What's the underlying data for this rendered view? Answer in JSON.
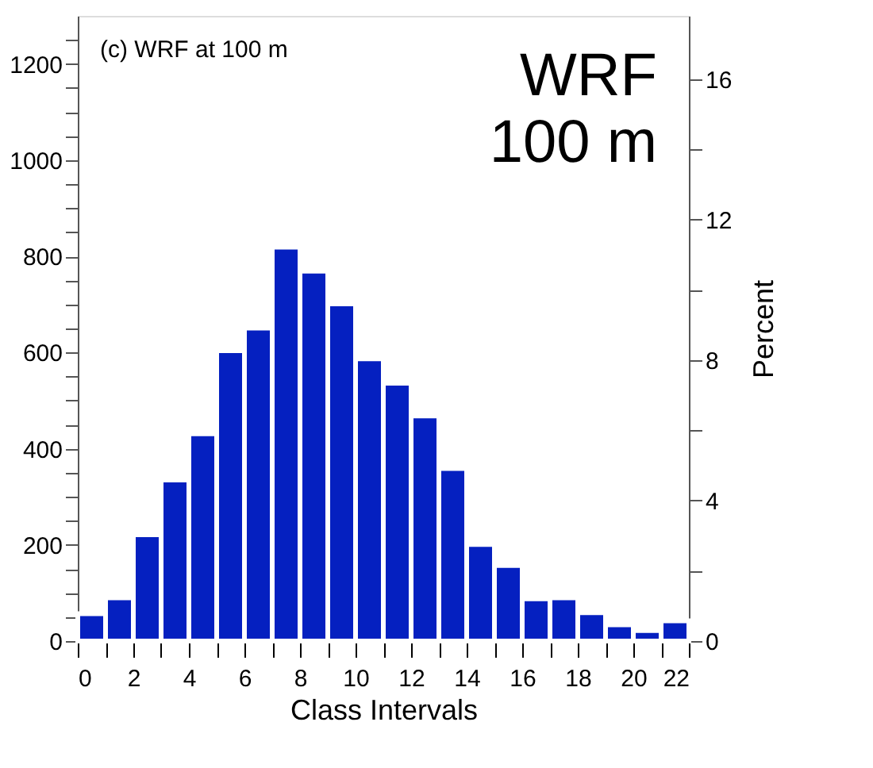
{
  "chart_data": {
    "type": "histogram",
    "xlabel": "Class Intervals",
    "y2label": "Percent",
    "bins": [
      0,
      1,
      2,
      3,
      4,
      5,
      6,
      7,
      8,
      9,
      10,
      11,
      12,
      13,
      14,
      15,
      16,
      17,
      18,
      19,
      20,
      21,
      22
    ],
    "values": [
      57,
      90,
      221,
      335,
      431,
      604,
      651,
      819,
      769,
      701,
      587,
      536,
      468,
      359,
      201,
      157,
      88,
      90,
      59,
      34,
      22,
      42
    ],
    "color": "#0520c0",
    "xlim": [
      0,
      22
    ],
    "xticks": [
      0,
      {
        "value": 1,
        "label": null
      },
      2,
      {
        "value": 3,
        "label": null
      },
      4,
      {
        "value": 5,
        "label": null
      },
      6,
      {
        "value": 7,
        "label": null
      },
      8,
      {
        "value": 9,
        "label": null
      },
      10,
      {
        "value": 11,
        "label": null
      },
      12,
      {
        "value": 13,
        "label": null
      },
      14,
      {
        "value": 15,
        "label": null
      },
      16,
      {
        "value": 17,
        "label": null
      },
      18,
      {
        "value": 19,
        "label": null
      },
      20,
      {
        "value": 21,
        "label": null
      },
      22
    ],
    "ylim": [
      0,
      1300
    ],
    "yticks": [
      0,
      {
        "value": 50,
        "label": null
      },
      {
        "value": 100,
        "label": null
      },
      {
        "value": 150,
        "label": null
      },
      200,
      {
        "value": 250,
        "label": null
      },
      {
        "value": 300,
        "label": null
      },
      {
        "value": 350,
        "label": null
      },
      400,
      {
        "value": 450,
        "label": null
      },
      {
        "value": 500,
        "label": null
      },
      {
        "value": 550,
        "label": null
      },
      600,
      {
        "value": 650,
        "label": null
      },
      {
        "value": 700,
        "label": null
      },
      {
        "value": 750,
        "label": null
      },
      800,
      {
        "value": 850,
        "label": null
      },
      {
        "value": 900,
        "label": null
      },
      {
        "value": 950,
        "label": null
      },
      1000,
      {
        "value": 1050,
        "label": null
      },
      {
        "value": 1100,
        "label": null
      },
      {
        "value": 1150,
        "label": null
      },
      1200,
      {
        "value": 1250,
        "label": null
      }
    ],
    "y2lim": [
      0,
      17.8
    ],
    "y2ticks": [
      0,
      {
        "value": 2,
        "label": null
      },
      4,
      {
        "value": 6,
        "label": null
      },
      8,
      {
        "value": 10,
        "label": null
      },
      12,
      {
        "value": 14,
        "label": null
      },
      16
    ],
    "annotations": [
      "(c) WRF at 100 m",
      "WRF\n100 m"
    ],
    "grid": false
  }
}
